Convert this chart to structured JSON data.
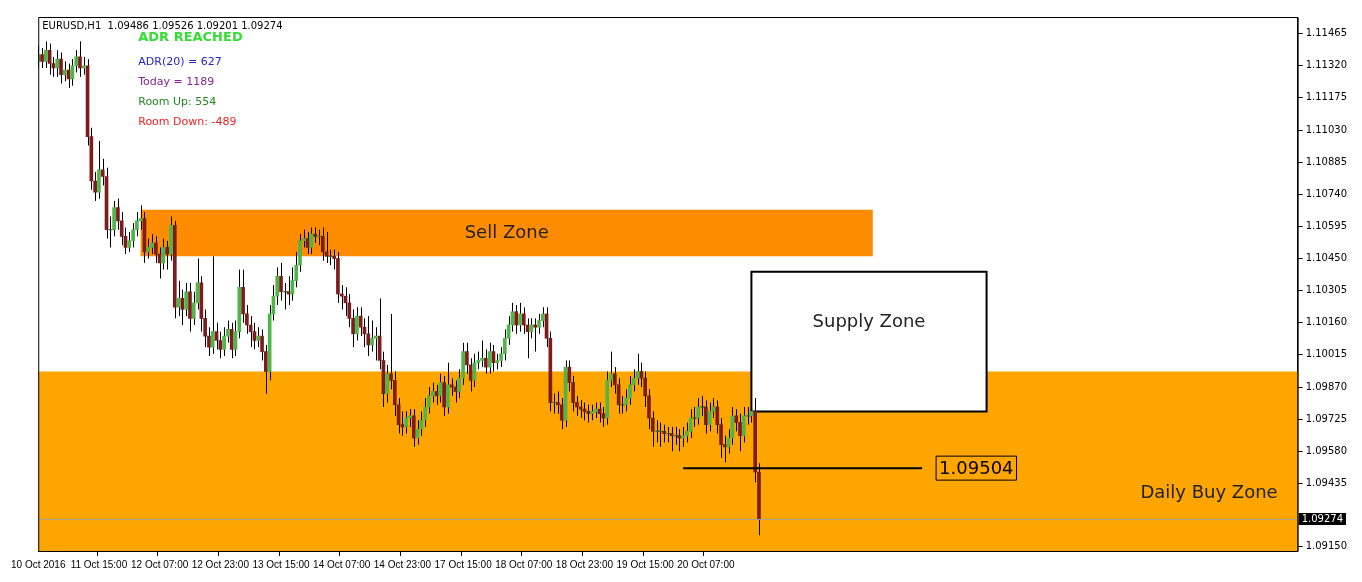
{
  "chart_data": {
    "type": "candlestick",
    "title": "EURUSD,H1  1.09486 1.09526 1.09201 1.09274",
    "annotations": [
      "ADR REACHED",
      "ADR(20) = 627",
      "Today = 1189",
      "Room Up: 554",
      "Room Down: -489"
    ],
    "categories": [
      "10 Oct 2016",
      null,
      null,
      null,
      null,
      null,
      null,
      null,
      null,
      null,
      null,
      null,
      null,
      null,
      null,
      null,
      "11 Oct 15:00",
      null,
      null,
      null,
      null,
      null,
      null,
      null,
      null,
      null,
      null,
      null,
      null,
      null,
      null,
      null,
      "12 Oct 07:00",
      null,
      null,
      null,
      null,
      null,
      null,
      null,
      null,
      null,
      null,
      null,
      null,
      null,
      null,
      null,
      "12 Oct 23:00",
      null,
      null,
      null,
      null,
      null,
      null,
      null,
      null,
      null,
      null,
      null,
      null,
      null,
      null,
      null,
      "13 Oct 15:00",
      null,
      null,
      null,
      null,
      null,
      null,
      null,
      null,
      null,
      null,
      null,
      null,
      null,
      null,
      null,
      "14 Oct 07:00",
      null,
      null,
      null,
      null,
      null,
      null,
      null,
      null,
      null,
      null,
      null,
      null,
      null,
      null,
      null,
      "14 Oct 23:00",
      null,
      null,
      null,
      null,
      null,
      null,
      null,
      null,
      null,
      null,
      null,
      null,
      null,
      null,
      null,
      "17 Oct 15:00",
      null,
      null,
      null,
      null,
      null,
      null,
      null,
      null,
      null,
      null,
      null,
      null,
      null,
      null,
      null,
      "18 Oct 07:00",
      null,
      null,
      null,
      null,
      null,
      null,
      null,
      null,
      null,
      null,
      null,
      null,
      null,
      null,
      null,
      "18 Oct 23:00",
      null,
      null,
      null,
      null,
      null,
      null,
      null,
      null,
      null,
      null,
      null,
      null,
      null,
      null,
      null,
      "19 Oct 15:00",
      null,
      null,
      null,
      null,
      null,
      null,
      null,
      null,
      null,
      null,
      null,
      null,
      null,
      null,
      null,
      "20 Oct 07:00",
      null,
      null,
      null,
      null,
      null,
      null,
      null,
      null,
      null,
      null,
      null,
      null,
      null,
      null,
      null,
      null,
      null,
      null,
      null,
      null,
      null,
      null,
      null,
      null,
      null,
      null,
      null,
      null,
      null,
      null,
      null,
      null,
      null,
      null,
      null,
      null,
      null,
      null,
      null,
      null,
      null,
      null,
      null,
      null,
      null,
      null,
      null,
      null,
      null,
      null,
      null,
      null,
      null,
      null,
      null,
      null,
      null,
      null,
      null,
      null,
      null,
      null,
      null,
      null,
      null,
      null,
      null,
      null,
      null,
      null,
      null,
      null,
      null,
      null,
      null,
      null,
      null,
      null,
      null,
      null,
      null,
      null,
      null,
      null,
      null,
      null,
      null,
      null,
      null,
      null,
      null,
      null,
      null,
      null,
      null,
      null,
      null,
      null,
      null,
      null,
      null,
      null,
      null,
      null,
      null,
      null,
      null,
      null,
      null,
      null,
      null,
      null,
      null,
      null,
      null,
      null,
      null,
      null,
      null,
      null,
      null,
      null,
      null,
      null,
      null,
      null,
      null,
      null,
      null,
      null,
      null,
      null,
      null,
      null,
      null,
      null,
      null,
      null,
      null,
      null,
      null,
      null,
      null,
      null,
      null,
      null,
      null,
      null,
      null,
      null,
      null,
      null,
      null,
      null,
      null,
      null
    ],
    "ohlc": [
      [
        1.1134,
        1.1141,
        1.1131,
        1.1137
      ],
      [
        1.1137,
        1.114,
        1.1131,
        1.1134
      ],
      [
        1.1134,
        1.1143,
        1.1131,
        1.1139
      ],
      [
        1.1139,
        1.1142,
        1.1128,
        1.1133
      ],
      [
        1.1133,
        1.1136,
        1.1127,
        1.1131
      ],
      [
        1.1131,
        1.1139,
        1.1127,
        1.1135
      ],
      [
        1.1135,
        1.1138,
        1.1124,
        1.1128
      ],
      [
        1.1128,
        1.1134,
        1.1125,
        1.113
      ],
      [
        1.113,
        1.1133,
        1.1122,
        1.1126
      ],
      [
        1.1126,
        1.1135,
        1.1123,
        1.1132
      ],
      [
        1.1132,
        1.1139,
        1.1129,
        1.1136
      ],
      [
        1.1136,
        1.1143,
        1.1127,
        1.1131
      ],
      [
        1.1131,
        1.1136,
        1.1128,
        1.1132
      ],
      [
        1.1132,
        1.1135,
        1.1096,
        1.11
      ],
      [
        1.11,
        1.1104,
        1.1076,
        1.108
      ],
      [
        1.108,
        1.1084,
        1.1071,
        1.1075
      ],
      [
        1.1075,
        1.1098,
        1.1072,
        1.1085
      ],
      [
        1.1085,
        1.109,
        1.1078,
        1.1082
      ],
      [
        1.1082,
        1.1086,
        1.1054,
        1.1058
      ],
      [
        1.1058,
        1.1064,
        1.105,
        1.1058
      ],
      [
        1.1058,
        1.1071,
        1.1055,
        1.1068
      ],
      [
        1.1068,
        1.1072,
        1.1058,
        1.1062
      ],
      [
        1.1062,
        1.1066,
        1.1051,
        1.1055
      ],
      [
        1.1055,
        1.1059,
        1.1047,
        1.105
      ],
      [
        1.105,
        1.1057,
        1.1048,
        1.1053
      ],
      [
        1.1053,
        1.1061,
        1.105,
        1.1058
      ],
      [
        1.1058,
        1.1066,
        1.1055,
        1.1062
      ],
      [
        1.1062,
        1.1069,
        1.1058,
        1.1063
      ],
      [
        1.1063,
        1.1066,
        1.1043,
        1.1048
      ],
      [
        1.1048,
        1.1054,
        1.1045,
        1.105
      ],
      [
        1.105,
        1.1056,
        1.1047,
        1.1052
      ],
      [
        1.1052,
        1.1055,
        1.1043,
        1.1047
      ],
      [
        1.1047,
        1.105,
        1.1036,
        1.1043
      ],
      [
        1.1043,
        1.1054,
        1.104,
        1.105
      ],
      [
        1.105,
        1.1053,
        1.104,
        1.1047
      ],
      [
        1.1047,
        1.1064,
        1.1044,
        1.106
      ],
      [
        1.106,
        1.1062,
        1.1018,
        1.1023
      ],
      [
        1.1023,
        1.1035,
        1.1019,
        1.1027
      ],
      [
        1.1027,
        1.1031,
        1.1015,
        1.1022
      ],
      [
        1.1022,
        1.1034,
        1.1019,
        1.103
      ],
      [
        1.103,
        1.1034,
        1.1012,
        1.1018
      ],
      [
        1.1018,
        1.103,
        1.1015,
        1.1025
      ],
      [
        1.1025,
        1.1045,
        1.1022,
        1.1034
      ],
      [
        1.1034,
        1.1037,
        1.1012,
        1.1018
      ],
      [
        1.1018,
        1.1022,
        1.1005,
        1.101
      ],
      [
        1.101,
        1.1014,
        1.1001,
        1.1005
      ],
      [
        1.1005,
        1.1046,
        1.1002,
        1.1012
      ],
      [
        1.1012,
        1.1016,
        1.1004,
        1.1008
      ],
      [
        1.1008,
        1.1012,
        1.1,
        1.1004
      ],
      [
        1.1004,
        1.1014,
        1.1001,
        1.101
      ],
      [
        1.101,
        1.1017,
        1.1007,
        1.1013
      ],
      [
        1.1013,
        1.1016,
        1.1,
        1.1004
      ],
      [
        1.1004,
        1.1017,
        1.1001,
        1.1012
      ],
      [
        1.1012,
        1.104,
        1.1009,
        1.1032
      ],
      [
        1.1032,
        1.104,
        1.1016,
        1.102
      ],
      [
        1.102,
        1.1024,
        1.1011,
        1.1015
      ],
      [
        1.1015,
        1.1019,
        1.1005,
        1.1012
      ],
      [
        1.1012,
        1.1016,
        1.1004,
        1.1008
      ],
      [
        1.1008,
        1.1014,
        1.1005,
        1.101
      ],
      [
        1.101,
        1.1013,
        1.0999,
        1.1003
      ],
      [
        1.1003,
        1.1006,
        1.0984,
        1.0994
      ],
      [
        1.0994,
        1.1024,
        1.099,
        1.102
      ],
      [
        1.102,
        1.1033,
        1.1017,
        1.1028
      ],
      [
        1.1028,
        1.1041,
        1.1024,
        1.1037
      ],
      [
        1.1037,
        1.1043,
        1.1026,
        1.103
      ],
      [
        1.103,
        1.1034,
        1.1022,
        1.103
      ],
      [
        1.103,
        1.1037,
        1.1024,
        1.1029
      ],
      [
        1.1029,
        1.1041,
        1.1026,
        1.1035
      ],
      [
        1.1035,
        1.1048,
        1.1032,
        1.1042
      ],
      [
        1.1042,
        1.1056,
        1.1039,
        1.1053
      ],
      [
        1.1053,
        1.1058,
        1.105,
        1.1054
      ],
      [
        1.1054,
        1.1057,
        1.1047,
        1.105
      ],
      [
        1.105,
        1.1059,
        1.1047,
        1.1056
      ],
      [
        1.1056,
        1.1059,
        1.1052,
        1.1055
      ],
      [
        1.1055,
        1.1058,
        1.1051,
        1.1055
      ],
      [
        1.1055,
        1.1059,
        1.1044,
        1.1048
      ],
      [
        1.1048,
        1.1057,
        1.1043,
        1.1046
      ],
      [
        1.1046,
        1.1049,
        1.1042,
        1.1046
      ],
      [
        1.1046,
        1.1049,
        1.104,
        1.1045
      ],
      [
        1.1045,
        1.1048,
        1.1025,
        1.1029
      ],
      [
        1.1029,
        1.1033,
        1.1022,
        1.1028
      ],
      [
        1.1028,
        1.1032,
        1.1019,
        1.1025
      ],
      [
        1.1025,
        1.1029,
        1.1014,
        1.1018
      ],
      [
        1.1018,
        1.1022,
        1.1005,
        1.1011
      ],
      [
        1.1011,
        1.1023,
        1.1008,
        1.1019
      ],
      [
        1.1019,
        1.1023,
        1.101,
        1.1014
      ],
      [
        1.1014,
        1.1018,
        1.1005,
        1.1011
      ],
      [
        1.1011,
        1.1019,
        1.1001,
        1.1006
      ],
      [
        1.1006,
        1.1017,
        1.1003,
        1.1009
      ],
      [
        1.1009,
        1.1014,
        1.0999,
        1.101
      ],
      [
        1.101,
        1.1027,
        1.0995,
        1.0999
      ],
      [
        1.0999,
        1.1003,
        1.0978,
        1.0984
      ],
      [
        1.0984,
        1.0997,
        1.098,
        1.0993
      ],
      [
        1.0993,
        1.102,
        1.0986,
        1.099
      ],
      [
        1.099,
        1.0994,
        1.0974,
        1.0979
      ],
      [
        1.0979,
        1.0982,
        1.0966,
        1.097
      ],
      [
        1.097,
        1.0976,
        1.0965,
        1.0969
      ],
      [
        1.0969,
        1.0976,
        1.0966,
        1.0973
      ],
      [
        1.0973,
        1.0977,
        1.0969,
        1.0974
      ],
      [
        1.0974,
        1.0977,
        1.096,
        1.0964
      ],
      [
        1.0964,
        1.0972,
        1.0961,
        1.0968
      ],
      [
        1.0968,
        1.0976,
        1.0965,
        1.0972
      ],
      [
        1.0972,
        1.0982,
        1.0969,
        1.0978
      ],
      [
        1.0978,
        1.0987,
        1.0975,
        1.0983
      ],
      [
        1.0983,
        1.0989,
        1.098,
        1.0985
      ],
      [
        1.0985,
        1.0988,
        1.0979,
        1.0983
      ],
      [
        1.0983,
        1.0993,
        1.098,
        1.0989
      ],
      [
        1.0989,
        1.0992,
        1.0974,
        1.0978
      ],
      [
        1.0978,
        1.0998,
        1.0975,
        1.0988
      ],
      [
        1.0988,
        1.0991,
        1.0983,
        1.0987
      ],
      [
        1.0987,
        1.099,
        1.098,
        1.0985
      ],
      [
        1.0985,
        1.0995,
        1.0982,
        1.0991
      ],
      [
        1.0991,
        1.1007,
        1.0988,
        1.1003
      ],
      [
        1.1003,
        1.1007,
        1.0993,
        1.0997
      ],
      [
        1.0997,
        1.1,
        1.0985,
        1.099
      ],
      [
        1.099,
        1.1002,
        1.0987,
        1.0998
      ],
      [
        1.0998,
        1.1003,
        1.0995,
        1.0999
      ],
      [
        1.0999,
        1.1008,
        1.0996,
        1.1
      ],
      [
        1.1,
        1.1004,
        1.0993,
        1.0996
      ],
      [
        1.0996,
        1.1007,
        1.0993,
        1.1003
      ],
      [
        1.1003,
        1.1006,
        1.0994,
        1.0998
      ],
      [
        1.0998,
        1.1002,
        1.0995,
        1.0999
      ],
      [
        1.0999,
        1.1005,
        1.0996,
        1.1002
      ],
      [
        1.1002,
        1.1013,
        1.0999,
        1.1009
      ],
      [
        1.1009,
        1.1019,
        1.1006,
        1.1015
      ],
      [
        1.1015,
        1.1025,
        1.1012,
        1.1021
      ],
      [
        1.1021,
        1.1024,
        1.1011,
        1.1015
      ],
      [
        1.1015,
        1.1025,
        1.1012,
        1.102
      ],
      [
        1.102,
        1.1023,
        1.1011,
        1.1015
      ],
      [
        1.1015,
        1.1018,
        1.1,
        1.1012
      ],
      [
        1.1012,
        1.1018,
        1.1009,
        1.1015
      ],
      [
        1.1015,
        1.1018,
        1.1003,
        1.1014
      ],
      [
        1.1014,
        1.102,
        1.1011,
        1.1017
      ],
      [
        1.1017,
        1.1023,
        1.1014,
        1.102
      ],
      [
        1.102,
        1.1023,
        1.1005,
        1.1009
      ],
      [
        1.1009,
        1.1012,
        1.0976,
        1.098
      ],
      [
        1.098,
        1.0984,
        1.0975,
        1.098
      ],
      [
        1.098,
        1.0985,
        1.0975,
        1.0979
      ],
      [
        1.0979,
        1.0982,
        1.0968,
        1.0972
      ],
      [
        1.0972,
        1.0999,
        1.0969,
        1.0996
      ],
      [
        1.0996,
        1.0999,
        1.0985,
        1.0989
      ],
      [
        1.0989,
        1.0992,
        1.0976,
        1.098
      ],
      [
        1.098,
        1.0983,
        1.0974,
        1.0978
      ],
      [
        1.0978,
        1.0981,
        1.0973,
        1.0977
      ],
      [
        1.0977,
        1.098,
        1.0972,
        1.0976
      ],
      [
        1.0976,
        1.0979,
        1.0971,
        1.0975
      ],
      [
        1.0975,
        1.0979,
        1.0972,
        1.0976
      ],
      [
        1.0976,
        1.098,
        1.0973,
        1.0977
      ],
      [
        1.0977,
        1.098,
        1.0971,
        1.0975
      ],
      [
        1.0975,
        1.0978,
        1.0969,
        1.0973
      ],
      [
        1.0973,
        1.0994,
        1.097,
        1.099
      ],
      [
        1.099,
        1.1003,
        1.0987,
        1.0993
      ],
      [
        1.0993,
        1.0996,
        1.0984,
        1.0988
      ],
      [
        1.0988,
        1.0991,
        1.0975,
        1.0979
      ],
      [
        1.0979,
        1.0983,
        1.0975,
        1.0979
      ],
      [
        1.0979,
        1.0986,
        1.0976,
        1.0982
      ],
      [
        1.0982,
        1.0992,
        1.0979,
        1.0988
      ],
      [
        1.0988,
        1.0995,
        1.0985,
        1.0991
      ],
      [
        1.0991,
        1.1002,
        1.0988,
        1.0994
      ],
      [
        1.0994,
        1.0998,
        1.0987,
        1.0991
      ],
      [
        1.0991,
        1.0994,
        1.0978,
        1.0983
      ],
      [
        1.0983,
        1.0986,
        1.0968,
        1.0973
      ],
      [
        1.0973,
        1.0976,
        1.096,
        1.0967
      ],
      [
        1.0967,
        1.0972,
        1.0962,
        1.0967
      ],
      [
        1.0967,
        1.0971,
        1.096,
        1.0967
      ],
      [
        1.0967,
        1.097,
        1.0962,
        1.0966
      ],
      [
        1.0966,
        1.0969,
        1.0962,
        1.0966
      ],
      [
        1.0966,
        1.0969,
        1.0958,
        1.0965
      ],
      [
        1.0965,
        1.0969,
        1.0961,
        1.0965
      ],
      [
        1.0965,
        1.0968,
        1.0958,
        1.0964
      ],
      [
        1.0964,
        1.0969,
        1.096,
        1.0965
      ],
      [
        1.0965,
        1.0971,
        1.0962,
        1.0967
      ],
      [
        1.0967,
        1.0977,
        1.0964,
        1.0973
      ],
      [
        1.0973,
        1.0978,
        1.0969,
        1.0973
      ],
      [
        1.0973,
        1.0982,
        1.097,
        1.0978
      ],
      [
        1.0978,
        1.0983,
        1.0974,
        1.0978
      ],
      [
        1.0978,
        1.0981,
        1.0966,
        1.097
      ],
      [
        1.097,
        1.098,
        1.0967,
        1.0976
      ],
      [
        1.0976,
        1.0982,
        1.0973,
        1.0978
      ],
      [
        1.0978,
        1.0981,
        1.0966,
        1.097
      ],
      [
        1.097,
        1.0973,
        1.0955,
        1.0961
      ],
      [
        1.0961,
        1.0965,
        1.0953,
        1.096
      ],
      [
        1.096,
        1.0968,
        1.0957,
        1.0964
      ],
      [
        1.0964,
        1.0978,
        1.0961,
        1.0974
      ],
      [
        1.0974,
        1.0977,
        1.0967,
        1.0971
      ],
      [
        1.0971,
        1.0975,
        1.0958,
        1.0965
      ],
      [
        1.0965,
        1.0978,
        1.0962,
        1.0974
      ],
      [
        1.0974,
        1.0978,
        1.097,
        1.0974
      ],
      [
        1.0974,
        1.0987,
        1.0971,
        1.0976
      ],
      [
        1.0976,
        1.0982,
        1.0944,
        1.09486
      ],
      [
        1.09486,
        1.09526,
        1.09201,
        1.09274
      ],
      null,
      null,
      null,
      null,
      null,
      null,
      null,
      null,
      null,
      null,
      null,
      null,
      null,
      null,
      null,
      null,
      null,
      null,
      null,
      null,
      null,
      null,
      null,
      null,
      null,
      null,
      null,
      null,
      null,
      null,
      null,
      null,
      null,
      null,
      null,
      null,
      null,
      null,
      null,
      null,
      null,
      null,
      null,
      null,
      null,
      null,
      null,
      null,
      null,
      null,
      null,
      null,
      null,
      null,
      null,
      null,
      null,
      null,
      null,
      null,
      null,
      null,
      null,
      null,
      null,
      null,
      null,
      null,
      null,
      null,
      null,
      null,
      null,
      null,
      null,
      null,
      null,
      null,
      null,
      null,
      null,
      null,
      null,
      null,
      null,
      null,
      null,
      null,
      null,
      null,
      null,
      null,
      null,
      null,
      null,
      null,
      null,
      null,
      null,
      null,
      null,
      null,
      null,
      null,
      null,
      null,
      null,
      null,
      null,
      null,
      null,
      null,
      null,
      null,
      null,
      null,
      null,
      null,
      null,
      null,
      null,
      null,
      null,
      null,
      null,
      null,
      null,
      null,
      null,
      null,
      null,
      null,
      null,
      null,
      null,
      null,
      null,
      null,
      null,
      null,
      null,
      null
    ],
    "ylim": [
      1.0913,
      1.1154
    ],
    "yticks": [
      1.11465,
      {
        "value": 1.1132,
        "label": "1.11320"
      },
      1.11175,
      {
        "value": 1.1103,
        "label": "1.11030"
      },
      1.10885,
      {
        "value": 1.1074,
        "label": "1.10740"
      },
      1.10595,
      {
        "value": 1.1045,
        "label": "1.10450"
      },
      1.10305,
      {
        "value": 1.1016,
        "label": "1.10160"
      },
      1.10015,
      {
        "value": 1.0987,
        "label": "1.09870"
      },
      1.09725,
      {
        "value": 1.0958,
        "label": "1.09580"
      },
      1.09435,
      {
        "value": 1.0915,
        "label": "1.09150"
      }
    ],
    "bands": [
      {
        "axis": "y",
        "from": 1.0913,
        "to": 1.0994,
        "label": "Daily Buy Zone",
        "color": "#ffa500"
      },
      {
        "axis": "y",
        "from": 1.1046,
        "to": 1.1067,
        "label": "Sell Zone",
        "color": "#ff8c00"
      },
      {
        "axis": "y",
        "from": 1.0976,
        "to": 1.1039,
        "label": "Supply Zone",
        "color": "#ffffff"
      }
    ],
    "ref_lines": [
      {
        "axis": "y",
        "value": 1.09504,
        "label": "1.09504",
        "color": "#000000"
      },
      {
        "axis": "y",
        "value": 1.09274,
        "label": "1.09274",
        "color": "#a0a0a0"
      }
    ],
    "grid": false,
    "legend": false
  }
}
